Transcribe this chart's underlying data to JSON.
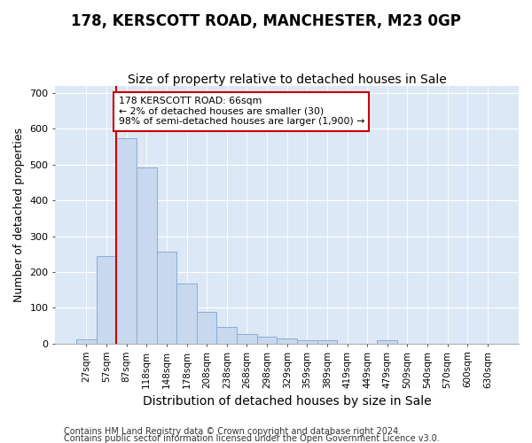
{
  "title": "178, KERSCOTT ROAD, MANCHESTER, M23 0GP",
  "subtitle": "Size of property relative to detached houses in Sale",
  "xlabel": "Distribution of detached houses by size in Sale",
  "ylabel": "Number of detached properties",
  "bins": [
    "27sqm",
    "57sqm",
    "87sqm",
    "118sqm",
    "148sqm",
    "178sqm",
    "208sqm",
    "238sqm",
    "268sqm",
    "298sqm",
    "329sqm",
    "359sqm",
    "389sqm",
    "419sqm",
    "449sqm",
    "479sqm",
    "509sqm",
    "540sqm",
    "570sqm",
    "600sqm",
    "630sqm"
  ],
  "values": [
    12,
    245,
    575,
    493,
    258,
    168,
    90,
    47,
    27,
    20,
    15,
    10,
    10,
    0,
    0,
    10,
    0,
    0,
    0,
    0,
    0
  ],
  "bar_color": "#c8d8ee",
  "bar_edge_color": "#8aadd4",
  "highlight_color": "#cc0000",
  "annotation_text": "178 KERSCOTT ROAD: 66sqm\n← 2% of detached houses are smaller (30)\n98% of semi-detached houses are larger (1,900) →",
  "annotation_box_color": "#ffffff",
  "annotation_box_edge": "#cc0000",
  "vline_x_index": 1,
  "vline_color": "#cc0000",
  "ylim": [
    0,
    720
  ],
  "yticks": [
    0,
    100,
    200,
    300,
    400,
    500,
    600,
    700
  ],
  "footer1": "Contains HM Land Registry data © Crown copyright and database right 2024.",
  "footer2": "Contains public sector information licensed under the Open Government Licence v3.0.",
  "plot_bg_color": "#dce8f5",
  "title_fontsize": 12,
  "subtitle_fontsize": 10,
  "label_fontsize": 9,
  "footer_fontsize": 7
}
